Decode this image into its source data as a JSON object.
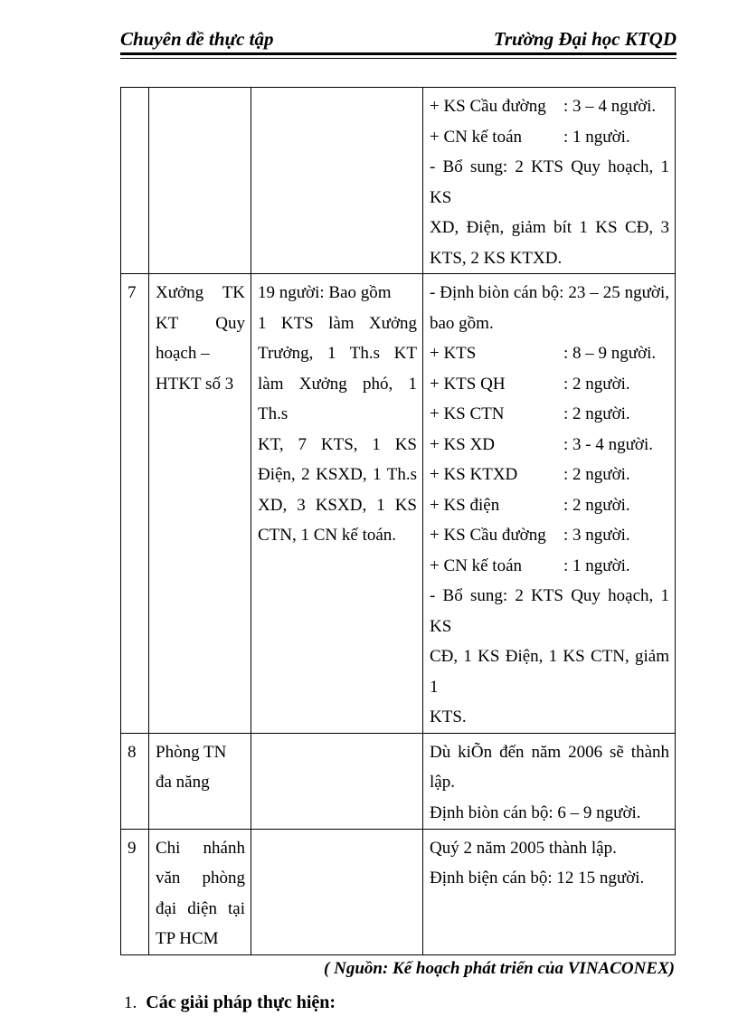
{
  "header": {
    "left": "Chuyên đề thực tập",
    "right": "Trường Đại học KTQD"
  },
  "table": {
    "rows": [
      {
        "num": "",
        "name_lines": [],
        "desc_lines": [],
        "detail_lines": [
          {
            "label": "+ KS Cầu đường",
            "value": ": 3 – 4 người."
          },
          {
            "label": "+ CN kế toán",
            "value": ": 1 người."
          },
          {
            "t": "- Bổ sung: 2 KTS Quy hoạch, 1 KS",
            "j": true
          },
          {
            "t": "XD, Điện, giảm bít 1 KS CĐ, 3",
            "j": true
          },
          {
            "t": "KTS, 2 KS KTXD."
          }
        ]
      },
      {
        "num": "7",
        "name_lines": [
          {
            "t": "Xưởng TK",
            "j": true
          },
          {
            "t": "KT Quy",
            "j": true
          },
          {
            "t": "hoạch –"
          },
          {
            "t": "HTKT số 3"
          }
        ],
        "desc_lines": [
          {
            "t": "19 người: Bao gồm"
          },
          {
            "t": "1 KTS làm Xưởng",
            "j": true
          },
          {
            "t": "Trưởng, 1 Th.s KT",
            "j": true
          },
          {
            "t": "làm Xưởng phó, 1 Th.s",
            "j": true
          },
          {
            "t": "KT, 7 KTS, 1 KS",
            "j": true
          },
          {
            "t": "Điện, 2 KSXD, 1 Th.s",
            "j": true
          },
          {
            "t": "XD, 3 KSXD, 1 KS",
            "j": true
          },
          {
            "t": "CTN, 1 CN kế toán."
          }
        ],
        "detail_lines": [
          {
            "t": "- Định biòn cán bộ: 23 – 25 người,",
            "j": true
          },
          {
            "t": "bao gồm."
          },
          {
            "label": "+ KTS",
            "value": ": 8 – 9 người."
          },
          {
            "label": "+ KTS QH",
            "value": ": 2 người."
          },
          {
            "label": "+ KS CTN",
            "value": ": 2 người."
          },
          {
            "label": "+ KS XD",
            "value": ": 3 - 4 người."
          },
          {
            "label": "+ KS KTXD",
            "value": ": 2 người."
          },
          {
            "label": "+ KS điện",
            "value": ": 2 người."
          },
          {
            "label": "+ KS Cầu đường",
            "value": ": 3 người."
          },
          {
            "label": "+ CN kế toán",
            "value": ": 1 người."
          },
          {
            "t": "- Bổ sung: 2 KTS Quy hoạch, 1 KS",
            "j": true
          },
          {
            "t": "CĐ, 1 KS Điện, 1 KS CTN, giảm 1",
            "j": true
          },
          {
            "t": "KTS."
          }
        ]
      },
      {
        "num": "8",
        "name_lines": [
          {
            "t": "Phòng TN"
          },
          {
            "t": "đa năng"
          }
        ],
        "desc_lines": [],
        "detail_lines": [
          {
            "t": "Dù kiÕn đến năm 2006 sẽ thành",
            "j": true
          },
          {
            "t": "lập."
          },
          {
            "t": "Định biòn cán bộ: 6 – 9 người."
          }
        ]
      },
      {
        "num": "9",
        "name_lines": [
          {
            "t": "Chi nhánh",
            "j": true
          },
          {
            "t": "văn phòng",
            "j": true
          },
          {
            "t": "đại diện tại",
            "j": true
          },
          {
            "t": "TP HCM"
          }
        ],
        "desc_lines": [],
        "detail_lines": [
          {
            "t": "Quý 2 năm 2005 thành lập."
          },
          {
            "t": "Định biện cán bộ: 12 15 người."
          }
        ]
      }
    ]
  },
  "source_note": "( Nguồn: Kế hoạch phát triển của VINACONEX)",
  "list_item": {
    "number": "1.",
    "label": "Các giải pháp thực hiện:"
  }
}
